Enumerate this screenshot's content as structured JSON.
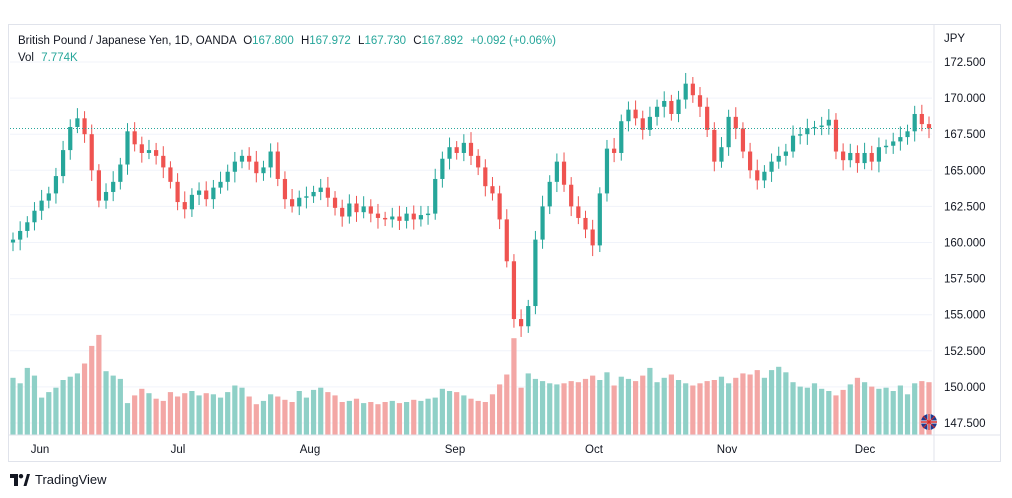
{
  "header": {
    "symbol": "British Pound / Japanese Yen, 1D, OANDA",
    "o_label": "O",
    "o_value": "167.800",
    "h_label": "H",
    "h_value": "167.972",
    "l_label": "L",
    "l_value": "167.730",
    "c_label": "C",
    "c_value": "167.892",
    "change": "+0.092 (+0.06%)",
    "vol_label": "Vol",
    "vol_value": "7.774K"
  },
  "currency": "JPY",
  "brand": "TradingView",
  "colors": {
    "up": "#26a69a",
    "down": "#ef5350",
    "up_vol": "#8fd0c7",
    "down_vol": "#f3a7a5",
    "grid": "#f0f3fa",
    "axis_text": "#131722"
  },
  "chart_data": {
    "type": "candlestick",
    "title": "British Pound / Japanese Yen, 1D, OANDA",
    "y_axis": {
      "unit": "JPY",
      "range": [
        147.5,
        172.5
      ],
      "ticks": [
        "172.500",
        "170.000",
        "167.500",
        "165.000",
        "162.500",
        "160.000",
        "157.500",
        "155.000",
        "152.500",
        "150.000",
        "147.500"
      ]
    },
    "x_axis": {
      "ticks": [
        "Jun",
        "Jul",
        "Aug",
        "Sep",
        "Oct",
        "Nov",
        "Dec"
      ]
    },
    "last_price": 167.892,
    "close": [
      160.2,
      160.8,
      161.4,
      162.2,
      162.9,
      163.4,
      164.6,
      166.4,
      168.0,
      168.6,
      167.5,
      165.0,
      162.9,
      163.5,
      164.2,
      165.4,
      167.7,
      166.8,
      166.2,
      166.4,
      166.0,
      165.2,
      164.2,
      162.8,
      162.3,
      163.3,
      163.6,
      163.0,
      163.8,
      164.2,
      164.9,
      165.6,
      166.0,
      165.6,
      164.8,
      165.2,
      166.3,
      164.4,
      163.0,
      162.5,
      163.1,
      163.2,
      163.5,
      163.8,
      163.1,
      162.4,
      161.8,
      162.7,
      162.1,
      162.5,
      162.0,
      161.7,
      161.6,
      161.8,
      161.5,
      162.0,
      161.6,
      161.9,
      162.0,
      164.4,
      165.8,
      166.6,
      166.2,
      166.9,
      166.0,
      165.2,
      163.9,
      163.4,
      161.6,
      158.7,
      154.7,
      154.2,
      155.6,
      160.2,
      162.5,
      164.2,
      165.6,
      164.0,
      162.5,
      161.7,
      160.9,
      159.8,
      163.4,
      166.5,
      166.2,
      168.4,
      169.2,
      168.6,
      167.8,
      168.7,
      169.4,
      169.8,
      168.9,
      169.9,
      171.0,
      170.2,
      169.4,
      167.8,
      165.6,
      166.6,
      168.7,
      167.9,
      166.3,
      165.0,
      164.3,
      164.9,
      165.6,
      166.0,
      166.3,
      167.4,
      167.5,
      167.9,
      168.0,
      168.1,
      168.5,
      166.3,
      165.7,
      166.2,
      165.5,
      166.2,
      165.6,
      166.6,
      166.7,
      167.0,
      167.3,
      167.7,
      168.9,
      168.2,
      167.9
    ],
    "volume_relative": [
      0.52,
      0.47,
      0.61,
      0.54,
      0.34,
      0.39,
      0.43,
      0.5,
      0.53,
      0.56,
      0.65,
      0.81,
      0.91,
      0.58,
      0.54,
      0.51,
      0.29,
      0.36,
      0.42,
      0.38,
      0.33,
      0.31,
      0.39,
      0.35,
      0.38,
      0.4,
      0.36,
      0.38,
      0.37,
      0.34,
      0.39,
      0.45,
      0.43,
      0.35,
      0.28,
      0.31,
      0.37,
      0.35,
      0.32,
      0.3,
      0.4,
      0.34,
      0.41,
      0.43,
      0.39,
      0.36,
      0.3,
      0.31,
      0.33,
      0.29,
      0.3,
      0.28,
      0.3,
      0.31,
      0.29,
      0.3,
      0.32,
      0.31,
      0.33,
      0.34,
      0.42,
      0.4,
      0.39,
      0.36,
      0.33,
      0.31,
      0.3,
      0.37,
      0.46,
      0.55,
      0.88,
      0.43,
      0.56,
      0.51,
      0.49,
      0.47,
      0.46,
      0.47,
      0.49,
      0.48,
      0.51,
      0.54,
      0.5,
      0.57,
      0.45,
      0.53,
      0.51,
      0.49,
      0.54,
      0.61,
      0.48,
      0.52,
      0.55,
      0.5,
      0.47,
      0.45,
      0.47,
      0.49,
      0.5,
      0.53,
      0.47,
      0.52,
      0.56,
      0.55,
      0.59,
      0.52,
      0.59,
      0.62,
      0.57,
      0.48,
      0.44,
      0.43,
      0.47,
      0.42,
      0.4,
      0.36,
      0.41,
      0.46,
      0.52,
      0.48,
      0.44,
      0.42,
      0.43,
      0.4,
      0.45,
      0.37,
      0.47,
      0.49,
      0.48
    ]
  }
}
